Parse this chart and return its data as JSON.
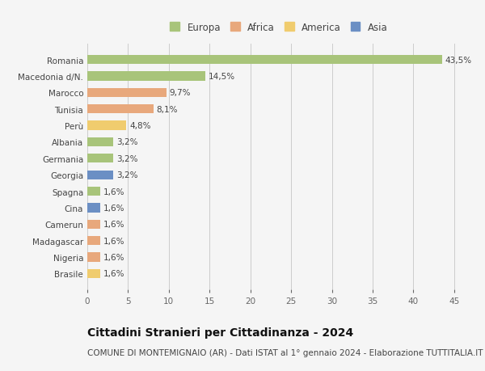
{
  "countries": [
    "Romania",
    "Macedonia d/N.",
    "Marocco",
    "Tunisia",
    "Perù",
    "Albania",
    "Germania",
    "Georgia",
    "Spagna",
    "Cina",
    "Camerun",
    "Madagascar",
    "Nigeria",
    "Brasile"
  ],
  "values": [
    43.5,
    14.5,
    9.7,
    8.1,
    4.8,
    3.2,
    3.2,
    3.2,
    1.6,
    1.6,
    1.6,
    1.6,
    1.6,
    1.6
  ],
  "labels": [
    "43,5%",
    "14,5%",
    "9,7%",
    "8,1%",
    "4,8%",
    "3,2%",
    "3,2%",
    "3,2%",
    "1,6%",
    "1,6%",
    "1,6%",
    "1,6%",
    "1,6%",
    "1,6%"
  ],
  "colors": [
    "#a8c47a",
    "#a8c47a",
    "#e8a87c",
    "#e8a87c",
    "#f0cc6e",
    "#a8c47a",
    "#a8c47a",
    "#6b8fc4",
    "#a8c47a",
    "#6b8fc4",
    "#e8a87c",
    "#e8a87c",
    "#e8a87c",
    "#f0cc6e"
  ],
  "continent_colors": {
    "Europa": "#a8c47a",
    "Africa": "#e8a87c",
    "America": "#f0cc6e",
    "Asia": "#6b8fc4"
  },
  "xlim": [
    0,
    47
  ],
  "xticks": [
    0,
    5,
    10,
    15,
    20,
    25,
    30,
    35,
    40,
    45
  ],
  "title": "Cittadini Stranieri per Cittadinanza - 2024",
  "subtitle": "COMUNE DI MONTEMIGNAIO (AR) - Dati ISTAT al 1° gennaio 2024 - Elaborazione TUTTITALIA.IT",
  "bg_color": "#f5f5f5",
  "bar_height": 0.55,
  "label_fontsize": 7.5,
  "title_fontsize": 10,
  "subtitle_fontsize": 7.5,
  "ytick_fontsize": 7.5,
  "xtick_fontsize": 7.5,
  "legend_fontsize": 8.5
}
